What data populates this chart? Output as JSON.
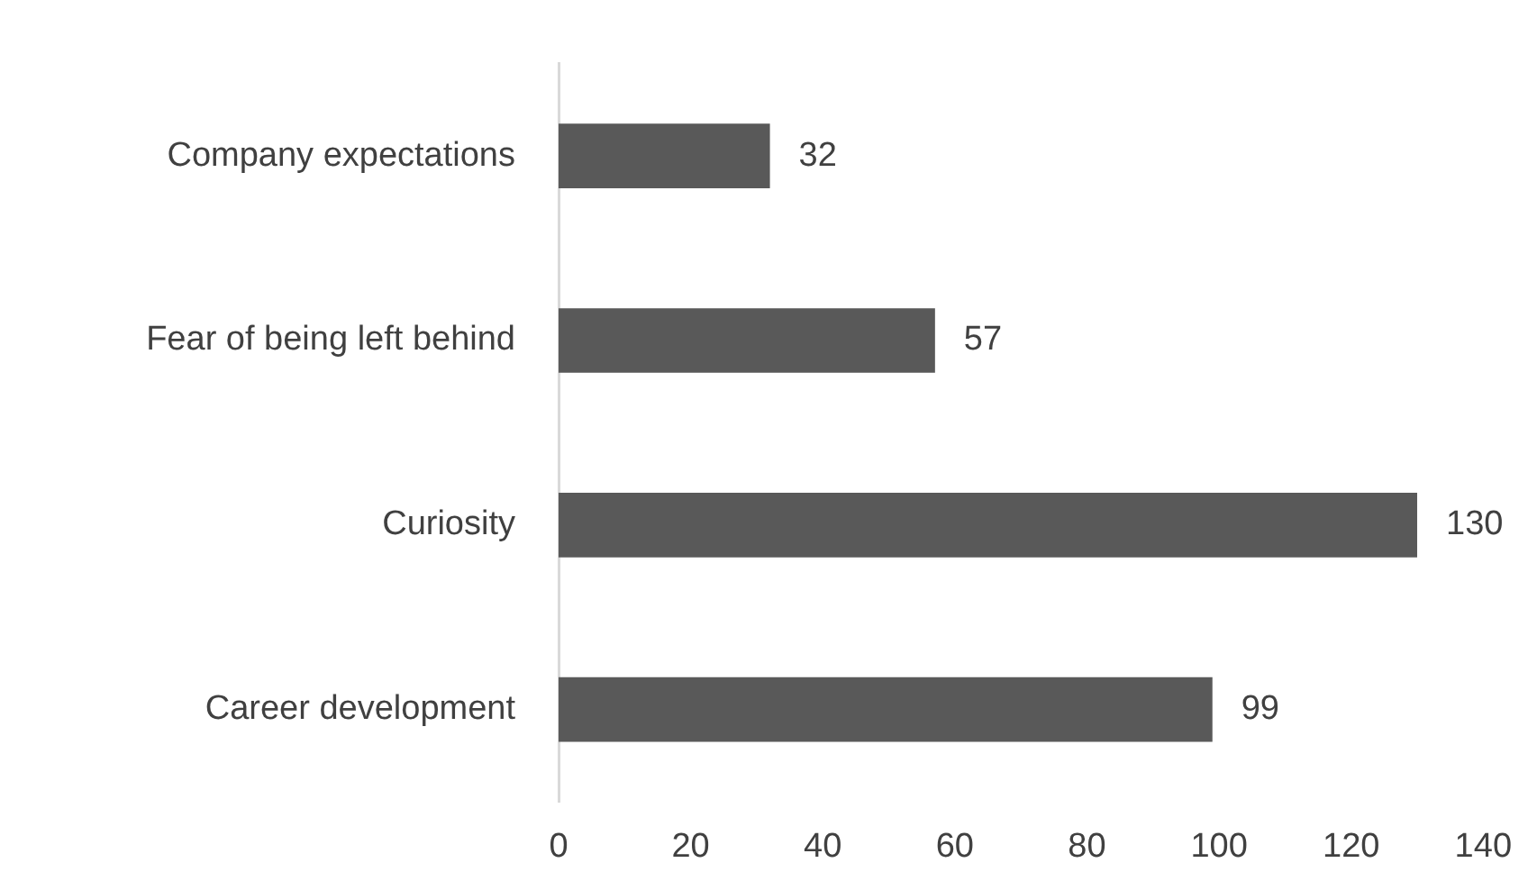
{
  "chart_data": {
    "type": "bar",
    "orientation": "horizontal",
    "categories": [
      "Company expectations",
      "Fear of being left behind",
      "Curiosity",
      "Career development"
    ],
    "values": [
      32,
      57,
      130,
      99
    ],
    "color": "#595959",
    "xlim": [
      0,
      140
    ],
    "xticks": [
      0,
      20,
      40,
      60,
      80,
      100,
      120,
      140
    ],
    "grid": false,
    "legend": false,
    "data_labels": true
  }
}
